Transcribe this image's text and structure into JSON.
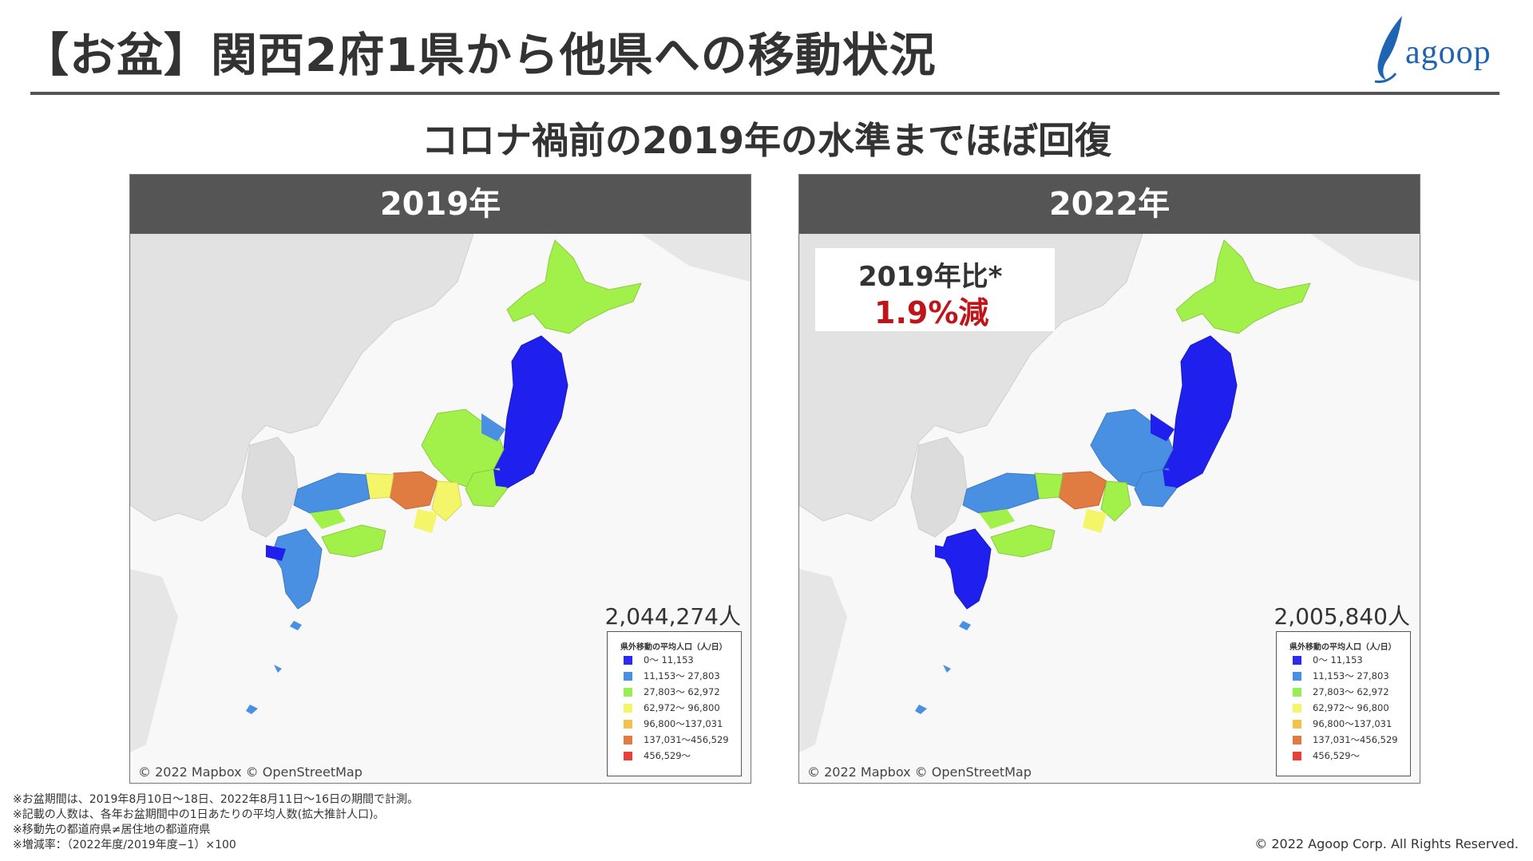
{
  "title": "【お盆】関西2府1県から他県への移動状況",
  "logo_text": "agoop",
  "subtitle": "コロナ禍前の2019年の水準までほぼ回復",
  "panels": [
    {
      "year": "2019年",
      "total": "2,044,274人",
      "attribution": "© 2022 Mapbox  © OpenStreetMap"
    },
    {
      "year": "2022年",
      "total": "2,005,840人",
      "attribution": "© 2022 Mapbox  © OpenStreetMap",
      "callout_line1": "2019年比*",
      "callout_line2": "1.9%減"
    }
  ],
  "legend": {
    "title": "県外移動の平均人口（人/日）",
    "items": [
      {
        "label": "0～ 11,153",
        "color": "#2b2bf0"
      },
      {
        "label": "11,153～ 27,803",
        "color": "#4a90e2"
      },
      {
        "label": "27,803～ 62,972",
        "color": "#99ee55"
      },
      {
        "label": "62,972～ 96,800",
        "color": "#f5f56a"
      },
      {
        "label": "96,800～137,031",
        "color": "#f3c24c"
      },
      {
        "label": "137,031～456,529",
        "color": "#e07b42"
      },
      {
        "label": "456,529～",
        "color": "#e8413a"
      }
    ]
  },
  "notes": [
    "※お盆期間は、2019年8月10日〜18日、2022年8月11日〜16日の期間で計測。",
    "※記載の人数は、各年お盆期間中の1日あたりの平均人数(拡大推計人口)。",
    "※移動先の都道府県≠居住地の都道府県",
    "※増減率：（2022年度/2019年度−1）×100"
  ],
  "copyright": "© 2022 Agoop Corp. All Rights Reserved."
}
